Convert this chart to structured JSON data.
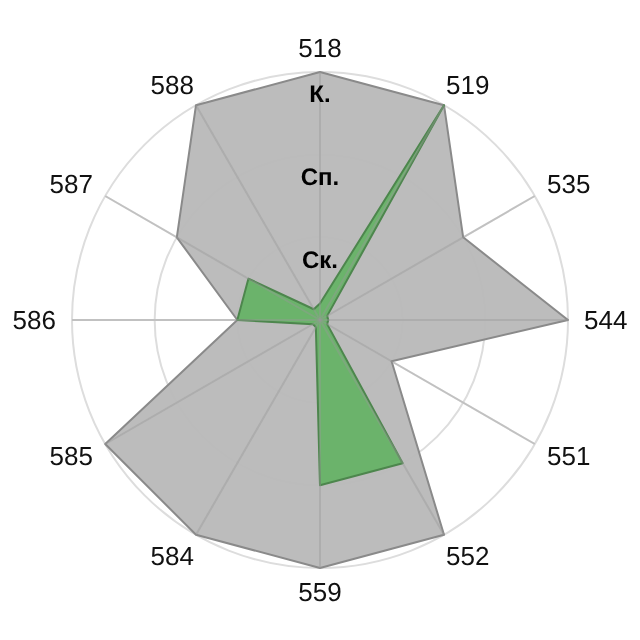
{
  "chart_data": {
    "type": "radar",
    "categories": [
      "518",
      "519",
      "535",
      "544",
      "551",
      "552",
      "559",
      "584",
      "585",
      "586",
      "587",
      "588"
    ],
    "ylim": [
      0,
      3
    ],
    "yticks": [
      {
        "value": 1,
        "label": "Ск."
      },
      {
        "value": 2,
        "label": "Сп."
      },
      {
        "value": 3,
        "label": "К."
      }
    ],
    "grid": true,
    "series": [
      {
        "color": "#b8b8b8",
        "values": [
          3,
          3,
          2,
          3,
          1,
          3,
          3,
          3,
          3,
          1,
          2,
          3
        ]
      },
      {
        "color": "#66b266",
        "values": [
          0.2,
          3,
          0.1,
          0.1,
          0.1,
          2,
          2,
          0.1,
          0.1,
          1,
          1,
          0.15
        ]
      }
    ]
  }
}
